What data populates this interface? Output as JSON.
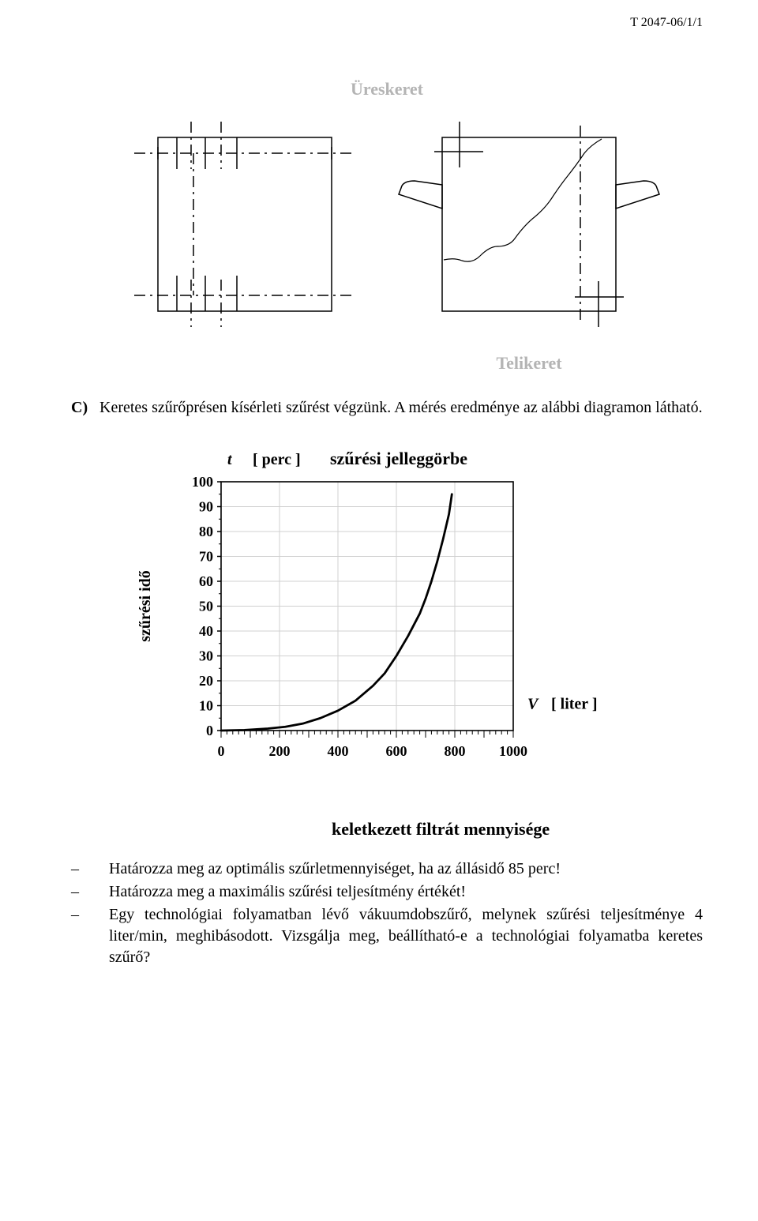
{
  "document": {
    "id": "T 2047-06/1/1"
  },
  "topFigure": {
    "labelTop": "Üreskeret",
    "labelBottom": "Telikeret",
    "strokeColor": "#000000",
    "grayLabelColor": "#b4b4b4"
  },
  "sectionC": {
    "marker": "C)",
    "text": "Keretes szűrőprésen kísérleti szűrést végzünk. A mérés eredménye az alábbi diagramon látható."
  },
  "chart": {
    "type": "line",
    "title": "szűrési jelleggörbe",
    "yAxis": {
      "symbol": "t",
      "unit": "[ perc ]",
      "label": "szűrési idő",
      "ticks": [
        0,
        10,
        20,
        30,
        40,
        50,
        60,
        70,
        80,
        90,
        100
      ],
      "ylim": [
        0,
        100
      ]
    },
    "xAxis": {
      "symbol": "V",
      "unit": "[ liter ]",
      "label": "keletkezett filtrát mennyisége",
      "majorTicks": [
        0,
        200,
        400,
        600,
        800,
        1000
      ],
      "xlim": [
        0,
        1000
      ],
      "minorStep": 20
    },
    "curve": {
      "points": [
        [
          0,
          0
        ],
        [
          80,
          0.2
        ],
        [
          160,
          0.8
        ],
        [
          220,
          1.5
        ],
        [
          280,
          2.8
        ],
        [
          340,
          5
        ],
        [
          400,
          8
        ],
        [
          460,
          12
        ],
        [
          520,
          18
        ],
        [
          560,
          23
        ],
        [
          600,
          30
        ],
        [
          640,
          38
        ],
        [
          680,
          47
        ],
        [
          700,
          53
        ],
        [
          720,
          60
        ],
        [
          740,
          68
        ],
        [
          760,
          77
        ],
        [
          780,
          87
        ],
        [
          790,
          95
        ]
      ],
      "strokeColor": "#000000",
      "strokeWidth": 2.8
    },
    "gridColor": "#d0d0d0",
    "axisColor": "#000000",
    "plotBackground": "#ffffff",
    "title_fontsize": 22,
    "label_fontsize": 20,
    "tick_fontsize": 18
  },
  "bottomCaption": "keletkezett filtrát mennyisége",
  "bullets": [
    "Határozza meg az optimális szűrletmennyiséget, ha az állásidő 85 perc!",
    "Határozza meg a maximális szűrési teljesítmény értékét!",
    "Egy technológiai folyamatban lévő vákuumdobszűrő, melynek szűrési teljesítménye 4 liter/min, meghibásodott. Vizsgálja meg, beállítható-e a technológiai folyamatba keretes szűrő?"
  ]
}
